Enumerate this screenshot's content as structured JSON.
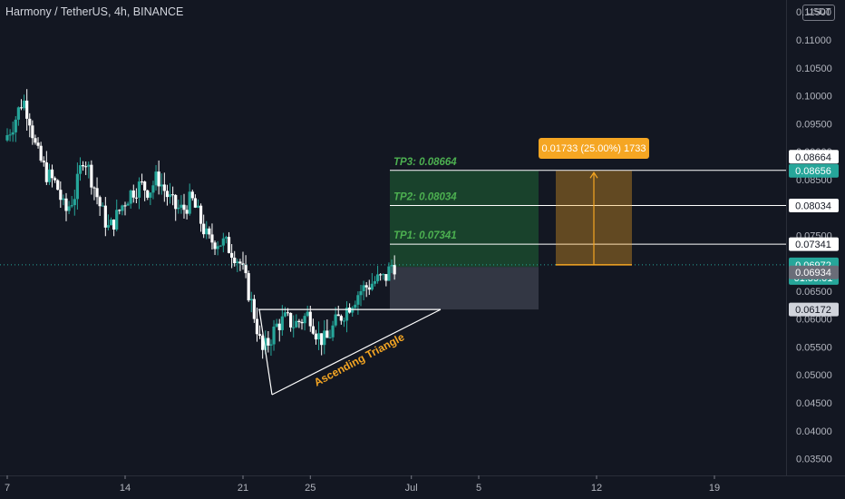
{
  "header": {
    "title": "Harmony / TetherUS, 4h, BINANCE",
    "currency": "USDT"
  },
  "chart_data": {
    "type": "candlestick",
    "symbol": "Harmony / TetherUS",
    "interval": "4h",
    "exchange": "BINANCE",
    "ylim": [
      0.032,
      0.1165
    ],
    "y_ticks": [
      "0.11500",
      "0.11000",
      "0.10500",
      "0.10000",
      "0.09500",
      "0.09000",
      "0.08500",
      "0.08000",
      "0.07500",
      "0.07000",
      "0.06500",
      "0.06000",
      "0.05500",
      "0.05000",
      "0.04500",
      "0.04000",
      "0.03500"
    ],
    "x_ticks": [
      "7",
      "14",
      "21",
      "25",
      "Jul",
      "5",
      "12",
      "19"
    ],
    "x_tick_days": [
      7,
      14,
      21,
      25,
      31,
      35,
      42,
      49
    ],
    "x_range_days": [
      6.9,
      55
    ],
    "price_path": [
      [
        7.0,
        0.092
      ],
      [
        7.6,
        0.0955
      ],
      [
        8.1,
        0.0995
      ],
      [
        8.5,
        0.096
      ],
      [
        8.9,
        0.09
      ],
      [
        9.5,
        0.086
      ],
      [
        10.1,
        0.084
      ],
      [
        10.6,
        0.079
      ],
      [
        11.2,
        0.0825
      ],
      [
        11.7,
        0.0895
      ],
      [
        12.2,
        0.085
      ],
      [
        12.7,
        0.08
      ],
      [
        13.2,
        0.076
      ],
      [
        13.6,
        0.078
      ],
      [
        14.1,
        0.081
      ],
      [
        14.6,
        0.083
      ],
      [
        15.1,
        0.084
      ],
      [
        15.6,
        0.083
      ],
      [
        16.1,
        0.0855
      ],
      [
        16.6,
        0.0825
      ],
      [
        17.1,
        0.08
      ],
      [
        17.6,
        0.0795
      ],
      [
        18.1,
        0.0815
      ],
      [
        18.6,
        0.078
      ],
      [
        19.1,
        0.074
      ],
      [
        19.6,
        0.074
      ],
      [
        20.1,
        0.0735
      ],
      [
        20.6,
        0.072
      ],
      [
        21.0,
        0.07
      ],
      [
        21.4,
        0.066
      ],
      [
        21.9,
        0.06
      ],
      [
        22.3,
        0.054
      ],
      [
        22.7,
        0.056
      ],
      [
        23.2,
        0.059
      ],
      [
        23.7,
        0.06
      ],
      [
        24.2,
        0.059
      ],
      [
        24.7,
        0.06
      ],
      [
        25.1,
        0.061
      ],
      [
        25.6,
        0.057
      ],
      [
        26.1,
        0.056
      ],
      [
        26.6,
        0.059
      ],
      [
        27.1,
        0.061
      ],
      [
        27.6,
        0.063
      ],
      [
        28.1,
        0.065
      ],
      [
        28.6,
        0.066
      ],
      [
        29.1,
        0.067
      ],
      [
        29.6,
        0.0672
      ],
      [
        30.0,
        0.0697
      ]
    ],
    "current_price": "0.06972",
    "countdown": "01:59:01",
    "entry_price": "0.06934",
    "stop_price": "0.06172",
    "target_price": "0.08656",
    "tp_levels": [
      {
        "label": "TP3: 0.08664",
        "price": 0.08664,
        "tag": "0.08664"
      },
      {
        "label": "TP2: 0.08034",
        "price": 0.08034,
        "tag": "0.08034"
      },
      {
        "label": "TP1: 0.07341",
        "price": 0.07341,
        "tag": "0.07341"
      }
    ],
    "measure_label": "0.01733 (25.00%) 1733",
    "pattern_label": "Ascending Triangle",
    "colors": {
      "up": "#26a69a",
      "down": "#ffffff",
      "bg": "#131722",
      "profit": "#1b4a2e",
      "loss": "#3a3d4a",
      "measure": "#f5a623",
      "tp_text": "#4caf50"
    }
  }
}
